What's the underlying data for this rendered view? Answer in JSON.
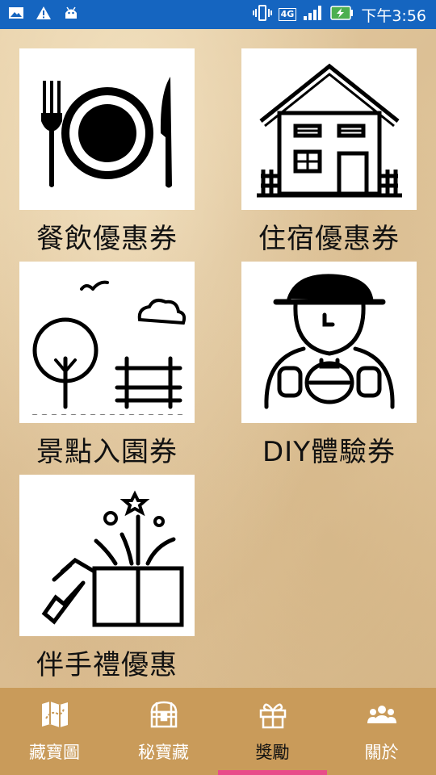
{
  "status_bar": {
    "time": "下午3:56",
    "network": "4G",
    "icons": [
      "image-icon",
      "warning-icon",
      "android-icon",
      "vibrate-icon",
      "signal-icon",
      "battery-charging-icon"
    ]
  },
  "coupons": [
    {
      "label": "餐飲優惠券",
      "icon": "dining-icon"
    },
    {
      "label": "住宿優惠券",
      "icon": "house-icon"
    },
    {
      "label": "景點入園券",
      "icon": "park-icon"
    },
    {
      "label": "DIY體驗券",
      "icon": "craftsman-icon"
    },
    {
      "label": "伴手禮優惠",
      "icon": "gift-icon"
    }
  ],
  "tabs": [
    {
      "label": "藏寶圖",
      "icon": "map-icon",
      "active": false
    },
    {
      "label": "秘寶藏",
      "icon": "treasure-chest-icon",
      "active": false
    },
    {
      "label": "獎勵",
      "icon": "gift-box-icon",
      "active": true
    },
    {
      "label": "關於",
      "icon": "people-icon",
      "active": false
    }
  ],
  "colors": {
    "status_bar": "#1565c0",
    "tab_bar": "#c99b5a",
    "tab_label": "#ffffff",
    "active_tab_label": "#111111",
    "active_indicator": "#e84c8a"
  }
}
